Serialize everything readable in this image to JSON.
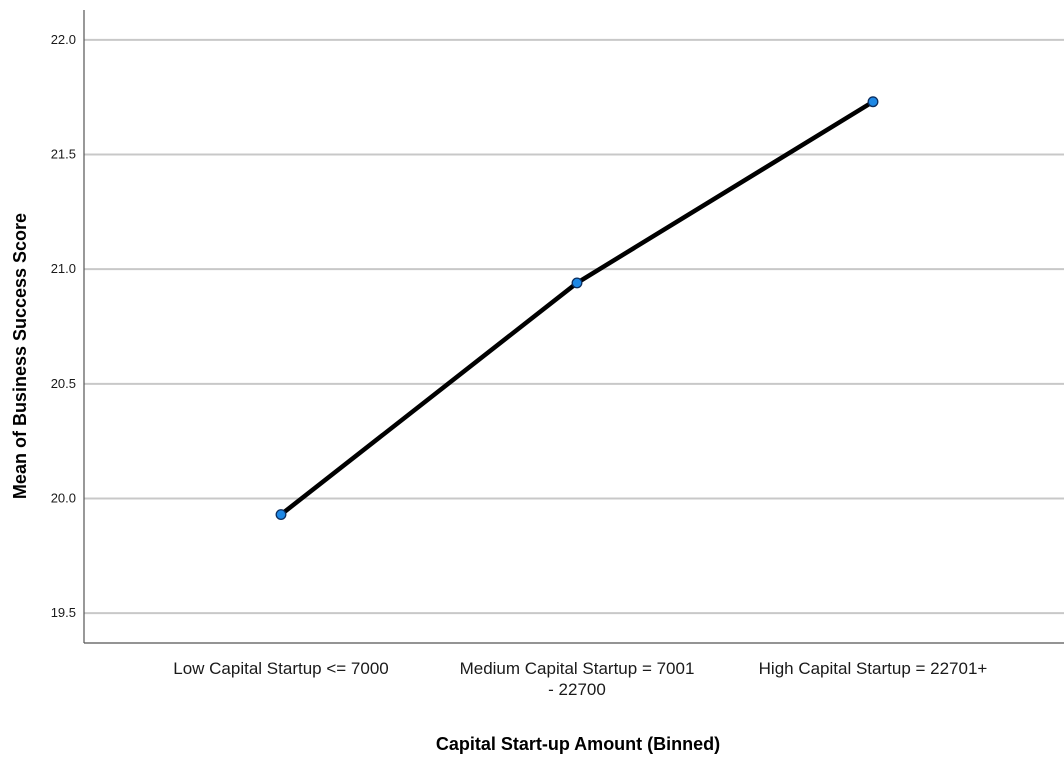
{
  "chart_data": {
    "type": "line",
    "xlabel": "Capital Start-up Amount (Binned)",
    "ylabel": "Mean of Business Success Score",
    "categories": [
      [
        "Low Capital Startup <= 7000"
      ],
      [
        "Medium Capital Startup = 7001",
        "- 22700"
      ],
      [
        "High Capital Startup = 22701+"
      ]
    ],
    "values": [
      19.93,
      20.94,
      21.73
    ],
    "ylim": [
      19.37,
      22.13
    ],
    "yticks": [
      "19.5",
      "20.0",
      "20.5",
      "21.0",
      "21.5",
      "22.0"
    ],
    "grid": true,
    "colors": {
      "line": "#000000",
      "marker_fill": "#1e88e5",
      "marker_stroke": "#0b2d5e",
      "grid": "#c8c8c8"
    }
  }
}
